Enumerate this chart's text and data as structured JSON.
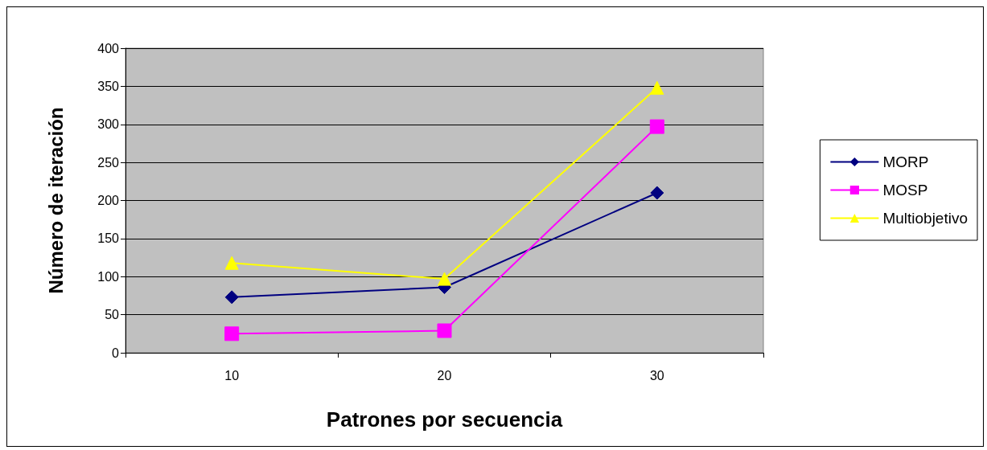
{
  "chart_data": {
    "type": "line",
    "xlabel": "Patrones por secuencia",
    "ylabel": "Número de iteración",
    "categories": [
      "10",
      "20",
      "30"
    ],
    "series": [
      {
        "name": "MORP",
        "color": "#000080",
        "marker": "diamond",
        "values": [
          73,
          86,
          210
        ]
      },
      {
        "name": "MOSP",
        "color": "#ff00ff",
        "marker": "square",
        "values": [
          25,
          29,
          297
        ]
      },
      {
        "name": "Multiobjetivo",
        "color": "#ffff00",
        "marker": "triangle",
        "values": [
          118,
          97,
          348
        ]
      }
    ],
    "ylim": [
      0,
      400
    ],
    "yticks": [
      0,
      50,
      100,
      150,
      200,
      250,
      300,
      350,
      400
    ],
    "grid": "y",
    "legend": "right",
    "line_style": "solid"
  }
}
